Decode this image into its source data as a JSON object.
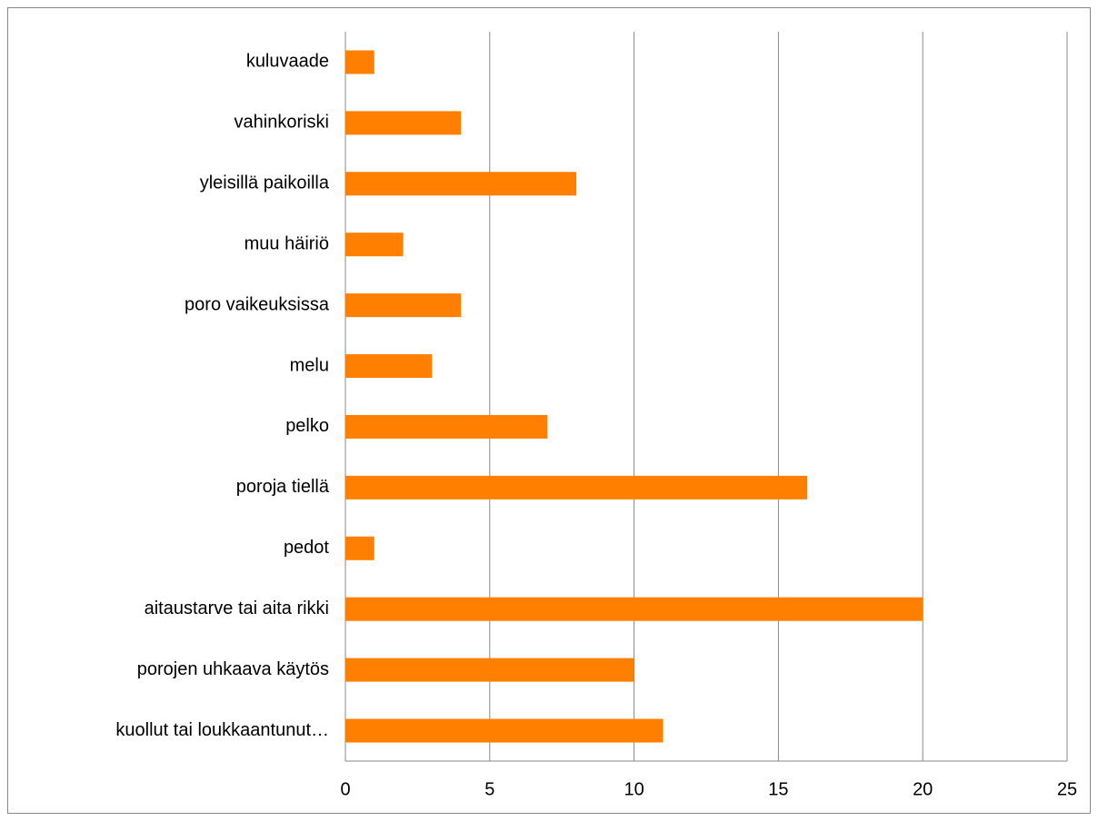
{
  "chart_data": {
    "type": "hbar",
    "categories": [
      "kuluvaade",
      "vahinkoriski",
      "yleisillä paikoilla",
      "muu häiriö",
      "poro vaikeuksissa",
      "melu",
      "pelko",
      "poroja tiellä",
      "pedot",
      "aitaustarve tai aita rikki",
      "porojen uhkaava käytös",
      "kuollut tai loukkaantunut…"
    ],
    "values": [
      1,
      4,
      8,
      2,
      4,
      3,
      7,
      16,
      1,
      20,
      10,
      11
    ],
    "color": "#ff8000",
    "xlim": [
      0,
      25
    ],
    "xticks": [
      0,
      5,
      10,
      15,
      20,
      25
    ],
    "grid": true
  }
}
